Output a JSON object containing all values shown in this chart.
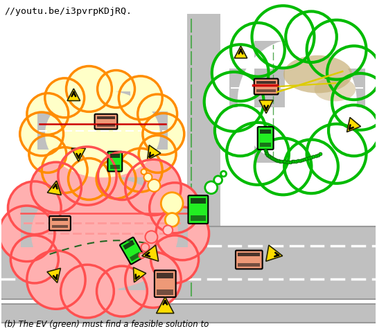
{
  "title_text": "//youtu.be/i3pvrpKDjRQ.",
  "caption_text": "(b) The EV (green) must find a feasible solution to",
  "bg_color": "#ffffff",
  "road_color": "#c0c0c0",
  "road_light": "#d0d0d0",
  "white": "#ffffff",
  "yellow_fill": "#ffffc8",
  "yellow_edge": "#ff8c00",
  "red_fill": "#ffb0b0",
  "red_edge": "#ff5050",
  "green_edge": "#00bb00",
  "green_fill": "#ffffff",
  "ev_green": "#22ee22",
  "npc_salmon": "#ee9977",
  "arrow_yellow": "#ffdd00",
  "arrow_edge": "#222200",
  "traj_green": "#00cc00",
  "traj_yellow": "#ddcc00",
  "traj_red": "#cc0000",
  "uncert_tan": "#c8b88860",
  "pink_line": "#ff8888"
}
